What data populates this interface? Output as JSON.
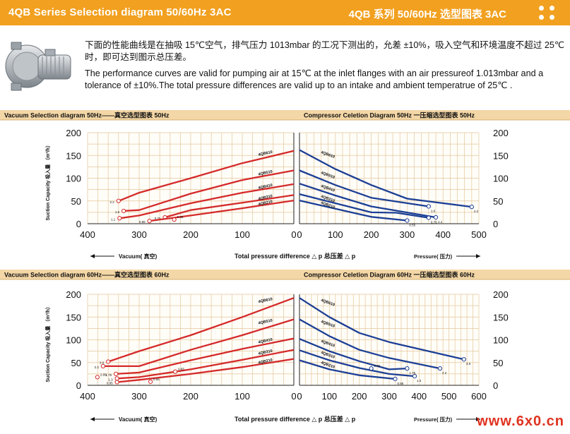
{
  "header": {
    "title_left": "4QB Series Selection diagram 50/60Hz 3AC",
    "title_right": "4QB 系列 50/60Hz 选型图表 3AC",
    "accent_color": "#f2a01f"
  },
  "intro": {
    "zh": "下面的性能曲线是在抽吸 15℃空气，排气压力 1013mbar 的工况下测出的，允差 ±10%，吸入空气和环境温度不超过 25℃时，即可达到图示总压差。",
    "en": "The performance curves are valid for pumping air at 15℃ at the inlet flanges with an air pressureof 1.013mbar and a tolerance of ±10%.The total pressure differences are valid up to an intake and ambient temperatrue of 25℃ ."
  },
  "watermark": "www.6x0.cn",
  "chart_data": [
    {
      "type": "line",
      "title": "Vacuum Selection diagram 50Hz——真空选型图表 50Hz",
      "xlabel": "Vacuum( 真空)",
      "ylabel": "Suction Capacity 吸入量 （m³/h）",
      "xlim": [
        400,
        0
      ],
      "ylim": [
        0,
        200
      ],
      "xticks": [
        400,
        300,
        200,
        100,
        0
      ],
      "yticks": [
        0,
        50,
        100,
        150,
        200
      ],
      "color": "#d42a2a",
      "series": [
        {
          "name": "4QB610",
          "points": [
            [
              0,
              160
            ],
            [
              100,
              133
            ],
            [
              200,
              100
            ],
            [
              300,
              68
            ],
            [
              340,
              50
            ]
          ],
          "end_label": "2.2"
        },
        {
          "name": "4QB510",
          "points": [
            [
              0,
              117
            ],
            [
              100,
              96
            ],
            [
              200,
              66
            ],
            [
              300,
              30
            ],
            [
              330,
              28
            ]
          ],
          "end_label": "1.6"
        },
        {
          "name": "4QB410",
          "points": [
            [
              0,
              87
            ],
            [
              100,
              68
            ],
            [
              200,
              45
            ],
            [
              300,
              18
            ],
            [
              338,
              12
            ]
          ],
          "end_label": "1.1"
        },
        {
          "name": "4QB310",
          "points": [
            [
              0,
              63
            ],
            [
              100,
              46
            ],
            [
              200,
              30
            ],
            [
              250,
              14
            ]
          ],
          "end_label": "0.75"
        },
        {
          "name": "4QB210",
          "points": [
            [
              0,
              51
            ],
            [
              100,
              34
            ],
            [
              200,
              18
            ],
            [
              280,
              6
            ]
          ],
          "end_label": "0.55"
        }
      ],
      "extra_markers": [
        {
          "x": 232,
          "y": 9,
          "label": "0.55"
        }
      ]
    },
    {
      "type": "line",
      "title": "Compressor Celetion Diagram 50Hz 一压缩选型图表 50Hz",
      "xlabel": "Pressure( 压力)",
      "center_label": "Total pressure difference △ p 总压差 △ p",
      "xlim": [
        0,
        500
      ],
      "ylim": [
        0,
        200
      ],
      "xticks": [
        0,
        100,
        200,
        300,
        400,
        500
      ],
      "yticks": [
        0,
        50,
        100,
        150,
        200
      ],
      "color": "#1c3f95",
      "series": [
        {
          "name": "4QB610",
          "points": [
            [
              0,
              162
            ],
            [
              100,
              120
            ],
            [
              200,
              85
            ],
            [
              300,
              55
            ],
            [
              480,
              37
            ]
          ],
          "end_label": "2.2"
        },
        {
          "name": "4QB510",
          "points": [
            [
              0,
              117
            ],
            [
              100,
              85
            ],
            [
              200,
              57
            ],
            [
              360,
              38
            ]
          ],
          "end_label": "1.6"
        },
        {
          "name": "4QB410",
          "points": [
            [
              0,
              88
            ],
            [
              100,
              62
            ],
            [
              200,
              38
            ],
            [
              380,
              14
            ]
          ],
          "end_label": "1.1"
        },
        {
          "name": "4QB310",
          "points": [
            [
              0,
              65
            ],
            [
              100,
              45
            ],
            [
              200,
              25
            ],
            [
              270,
              24
            ],
            [
              360,
              13
            ]
          ],
          "end_label": "0.75"
        },
        {
          "name": "4QB210",
          "points": [
            [
              0,
              51
            ],
            [
              100,
              33
            ],
            [
              200,
              15
            ],
            [
              300,
              7
            ]
          ],
          "end_label": "0.55"
        }
      ]
    },
    {
      "type": "line",
      "title": "Vacuum Selection diagram 60Hz——真空选型图表 60Hz",
      "xlabel": "Vacuum( 真空)",
      "ylabel": "Suction Capacity 吸入量 （m³/h）",
      "xlim": [
        400,
        0
      ],
      "ylim": [
        0,
        200
      ],
      "xticks": [
        400,
        300,
        200,
        100,
        0
      ],
      "yticks": [
        0,
        50,
        100,
        150,
        200
      ],
      "color": "#d42a2a",
      "series": [
        {
          "name": "4QB610",
          "points": [
            [
              0,
              192
            ],
            [
              100,
              150
            ],
            [
              200,
              110
            ],
            [
              300,
              75
            ],
            [
              360,
              52
            ]
          ],
          "end_label": "3.6"
        },
        {
          "name": "4QB510",
          "points": [
            [
              0,
              145
            ],
            [
              100,
              110
            ],
            [
              200,
              78
            ],
            [
              300,
              42
            ],
            [
              370,
              42
            ]
          ],
          "end_label": "2.2"
        },
        {
          "name": "4QB410",
          "points": [
            [
              0,
              103
            ],
            [
              100,
              80
            ],
            [
              200,
              55
            ],
            [
              300,
              28
            ],
            [
              345,
              25
            ]
          ],
          "end_label": "1.75"
        },
        {
          "name": "4QB310",
          "points": [
            [
              0,
              78
            ],
            [
              100,
              56
            ],
            [
              200,
              35
            ],
            [
              300,
              18
            ],
            [
              343,
              15
            ]
          ],
          "end_label": "1.3"
        },
        {
          "name": "4QB210",
          "points": [
            [
              0,
              58
            ],
            [
              100,
              40
            ],
            [
              200,
              25
            ],
            [
              300,
              12
            ],
            [
              343,
              7
            ]
          ],
          "end_label": "0.85"
        }
      ],
      "extra_markers": [
        {
          "x": 230,
          "y": 30,
          "label": "0.65"
        },
        {
          "x": 278,
          "y": 8,
          "label": "0.65"
        },
        {
          "x": 381,
          "y": 18,
          "label": "2.65"
        }
      ]
    },
    {
      "type": "line",
      "title": "Compressor Celetion Diagram 60Hz 一压缩选型图表 60Hz",
      "xlabel": "Pressure( 压力)",
      "center_label": "Total pressure difference △ p 总压差 △ p",
      "xlim": [
        0,
        600
      ],
      "ylim": [
        0,
        200
      ],
      "xticks": [
        0,
        100,
        200,
        300,
        400,
        500,
        600
      ],
      "yticks": [
        0,
        50,
        100,
        150,
        200
      ],
      "color": "#1c3f95",
      "series": [
        {
          "name": "4QB610",
          "points": [
            [
              0,
              192
            ],
            [
              100,
              150
            ],
            [
              200,
              115
            ],
            [
              300,
              95
            ],
            [
              550,
              57
            ]
          ],
          "end_label": "3.6"
        },
        {
          "name": "4QB510",
          "points": [
            [
              0,
              145
            ],
            [
              100,
              108
            ],
            [
              200,
              78
            ],
            [
              300,
              60
            ],
            [
              470,
              37
            ]
          ],
          "end_label": "2.2"
        },
        {
          "name": "4QB410",
          "points": [
            [
              0,
              102
            ],
            [
              100,
              75
            ],
            [
              200,
              53
            ],
            [
              300,
              35
            ],
            [
              360,
              37
            ]
          ],
          "end_label": "1.75"
        },
        {
          "name": "4QB310",
          "points": [
            [
              0,
              77
            ],
            [
              100,
              55
            ],
            [
              200,
              38
            ],
            [
              300,
              25
            ],
            [
              385,
              20
            ]
          ],
          "end_label": "1.3"
        },
        {
          "name": "4QB210",
          "points": [
            [
              0,
              55
            ],
            [
              100,
              35
            ],
            [
              200,
              22
            ],
            [
              320,
              14
            ]
          ],
          "end_label": "0.85"
        }
      ],
      "extra_markers": [
        {
          "x": 240,
          "y": 37,
          "label": "0.65"
        }
      ]
    }
  ]
}
